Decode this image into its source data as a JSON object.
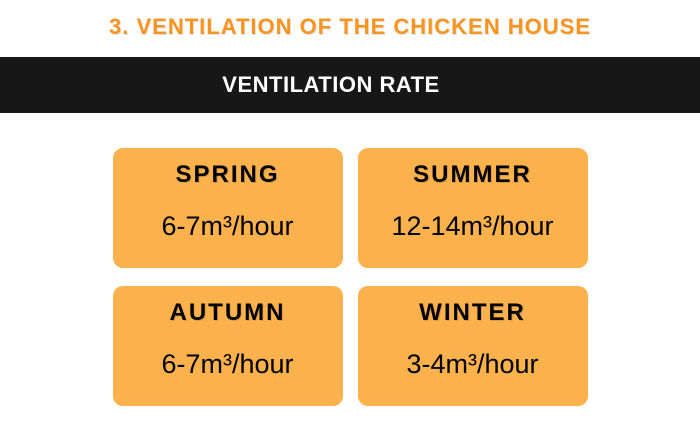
{
  "title": "3. VENTILATION OF THE CHICKEN HOUSE",
  "banner": {
    "label": "VENTILATION RATE"
  },
  "cards": [
    {
      "season": "SPRING",
      "rate": "6-7m³/hour"
    },
    {
      "season": "SUMMER",
      "rate": "12-14m³/hour"
    },
    {
      "season": "AUTUMN",
      "rate": "6-7m³/hour"
    },
    {
      "season": "WINTER",
      "rate": "3-4m³/hour"
    }
  ],
  "colors": {
    "title_orange": "#F8941F",
    "card_orange": "#FBB24C",
    "banner_black": "#171717",
    "card_text": "#000000",
    "banner_text": "#FFFFFF"
  }
}
